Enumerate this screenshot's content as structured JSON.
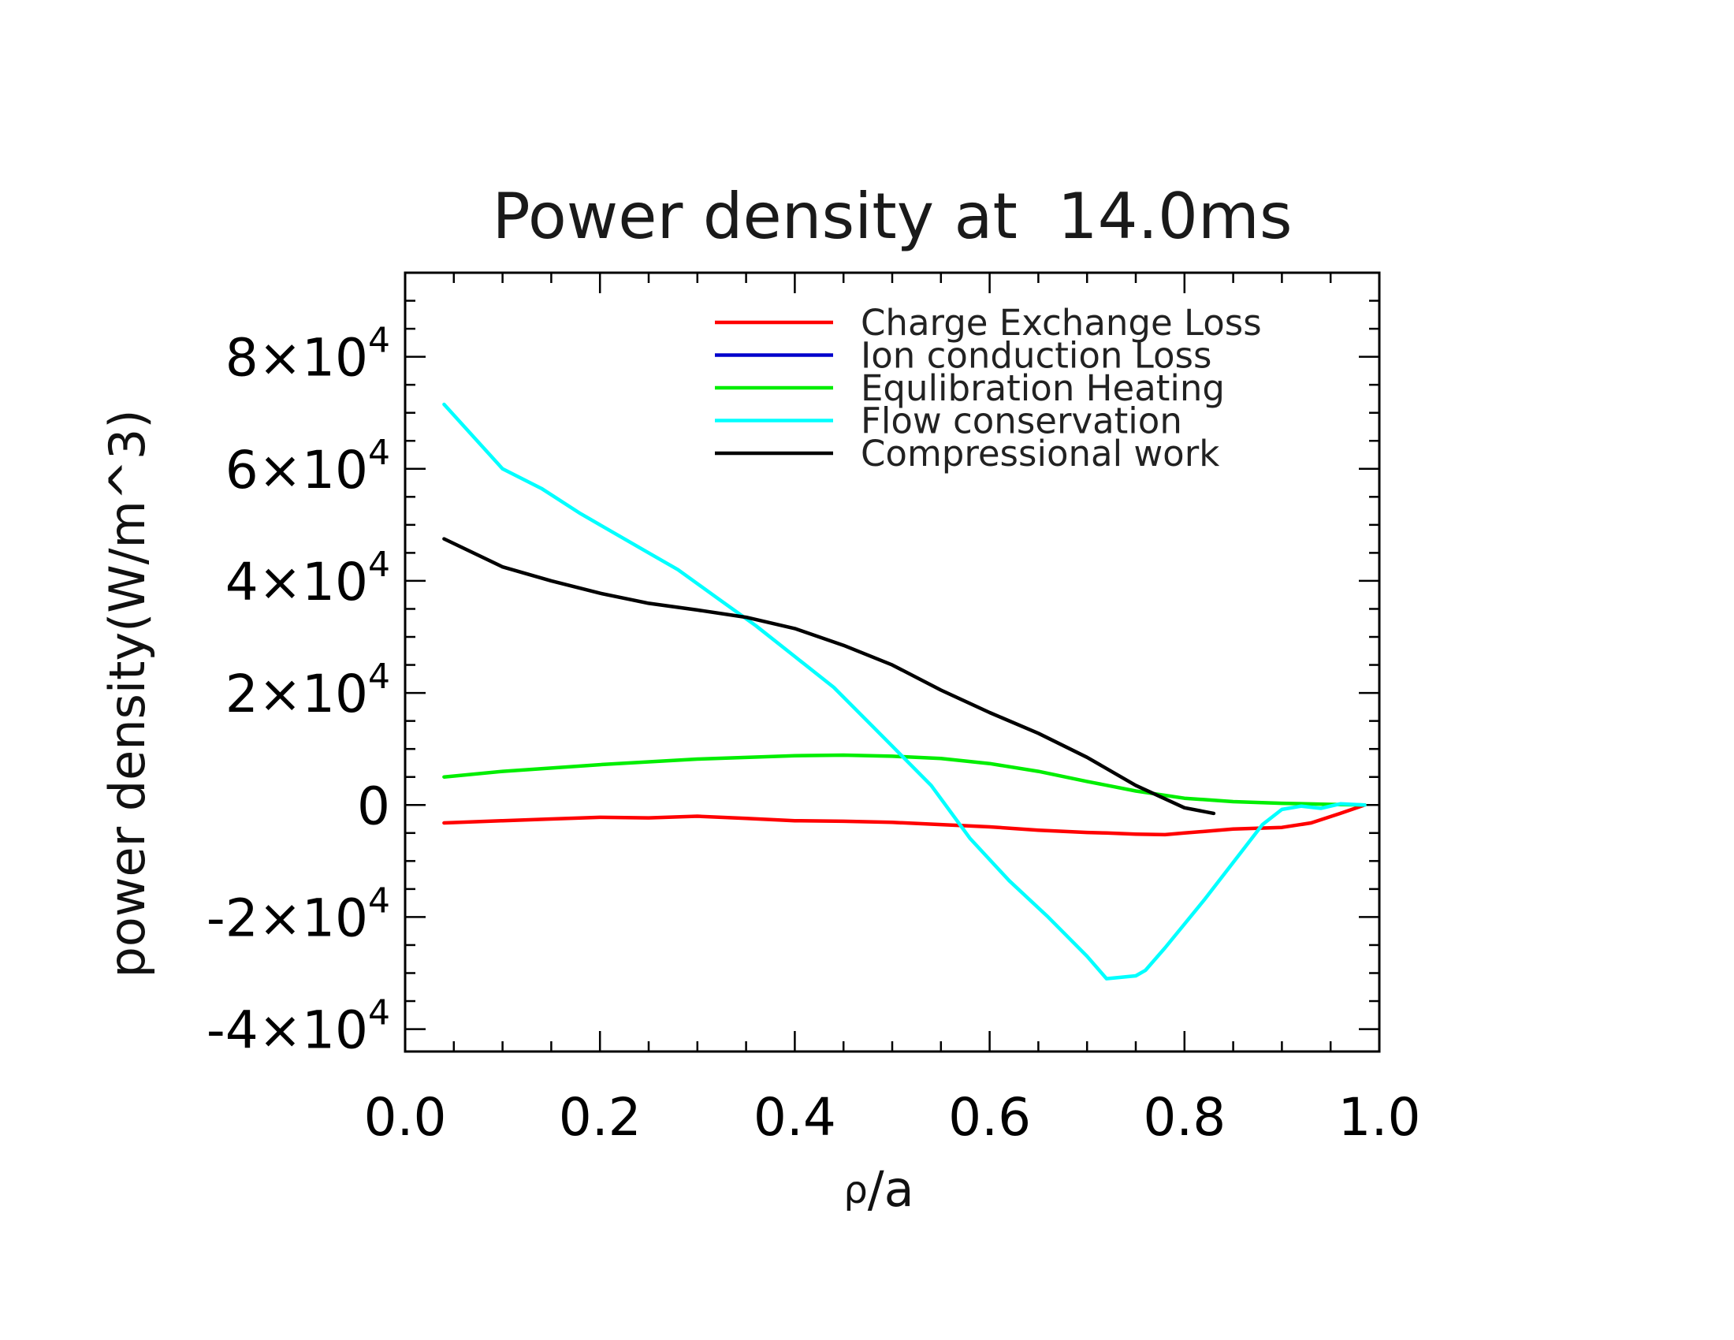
{
  "chart_data": {
    "type": "line",
    "title": "Power density at  14.0ms",
    "xlabel": {
      "symbol": "ρ",
      "rest": "/a"
    },
    "ylabel": "power density(W/m^3)",
    "xlim": [
      0.0,
      1.0
    ],
    "ylim": [
      -44000,
      95000
    ],
    "grid": false,
    "legend_position": "top-right",
    "x_ticks": [
      {
        "value": 0.0,
        "label": "0.0"
      },
      {
        "value": 0.2,
        "label": "0.2"
      },
      {
        "value": 0.4,
        "label": "0.4"
      },
      {
        "value": 0.6,
        "label": "0.6"
      },
      {
        "value": 0.8,
        "label": "0.8"
      },
      {
        "value": 1.0,
        "label": "1.0"
      }
    ],
    "y_ticks": [
      {
        "value": 80000,
        "mantissa": "8×10",
        "exp": "4"
      },
      {
        "value": 60000,
        "mantissa": "6×10",
        "exp": "4"
      },
      {
        "value": 40000,
        "mantissa": "4×10",
        "exp": "4"
      },
      {
        "value": 20000,
        "mantissa": "2×10",
        "exp": "4"
      },
      {
        "value": 0,
        "mantissa": "0",
        "exp": ""
      },
      {
        "value": -20000,
        "mantissa": "-2×10",
        "exp": "4"
      },
      {
        "value": -40000,
        "mantissa": "-4×10",
        "exp": "4"
      }
    ],
    "series": [
      {
        "name": "Charge Exchange Loss",
        "color": "#ff0000",
        "x": [
          0.04,
          0.1,
          0.15,
          0.2,
          0.25,
          0.3,
          0.35,
          0.4,
          0.45,
          0.5,
          0.55,
          0.6,
          0.65,
          0.7,
          0.72,
          0.75,
          0.78,
          0.8,
          0.85,
          0.9,
          0.93,
          0.96,
          0.985
        ],
        "y": [
          -3200,
          -2800,
          -2500,
          -2200,
          -2300,
          -2000,
          -2400,
          -2800,
          -2900,
          -3100,
          -3500,
          -3900,
          -4500,
          -4900,
          -5000,
          -5200,
          -5300,
          -5000,
          -4300,
          -4000,
          -3200,
          -1500,
          0
        ]
      },
      {
        "name": "Ion conduction Loss",
        "color": "#0000cc",
        "x": [],
        "y": []
      },
      {
        "name": "Equlibration Heating",
        "color": "#00ee00",
        "x": [
          0.04,
          0.1,
          0.2,
          0.3,
          0.4,
          0.45,
          0.5,
          0.55,
          0.6,
          0.65,
          0.7,
          0.75,
          0.8,
          0.85,
          0.9,
          0.95,
          0.985
        ],
        "y": [
          5000,
          6000,
          7200,
          8200,
          8800,
          8900,
          8700,
          8300,
          7400,
          6000,
          4200,
          2500,
          1200,
          600,
          300,
          100,
          0
        ]
      },
      {
        "name": "Flow conservation",
        "color": "#00ffff",
        "x": [
          0.04,
          0.1,
          0.14,
          0.18,
          0.22,
          0.25,
          0.28,
          0.32,
          0.36,
          0.4,
          0.44,
          0.48,
          0.5,
          0.54,
          0.58,
          0.62,
          0.66,
          0.7,
          0.72,
          0.75,
          0.76,
          0.78,
          0.82,
          0.86,
          0.88,
          0.9,
          0.92,
          0.94,
          0.96,
          0.985
        ],
        "y": [
          71500,
          60000,
          56500,
          52000,
          48000,
          45000,
          42000,
          37000,
          32000,
          26500,
          21000,
          14000,
          10500,
          3500,
          -6000,
          -13500,
          -20000,
          -27000,
          -31000,
          -30500,
          -29500,
          -25500,
          -17000,
          -8000,
          -3500,
          -800,
          -200,
          -600,
          200,
          0
        ]
      },
      {
        "name": "Compressional work",
        "color": "#000000",
        "x": [
          0.04,
          0.1,
          0.15,
          0.2,
          0.25,
          0.3,
          0.35,
          0.4,
          0.45,
          0.5,
          0.55,
          0.6,
          0.65,
          0.7,
          0.75,
          0.8,
          0.83
        ],
        "y": [
          47500,
          42500,
          40000,
          37800,
          36000,
          34800,
          33500,
          31500,
          28500,
          25000,
          20500,
          16500,
          12800,
          8500,
          3500,
          -500,
          -1500
        ]
      }
    ]
  }
}
